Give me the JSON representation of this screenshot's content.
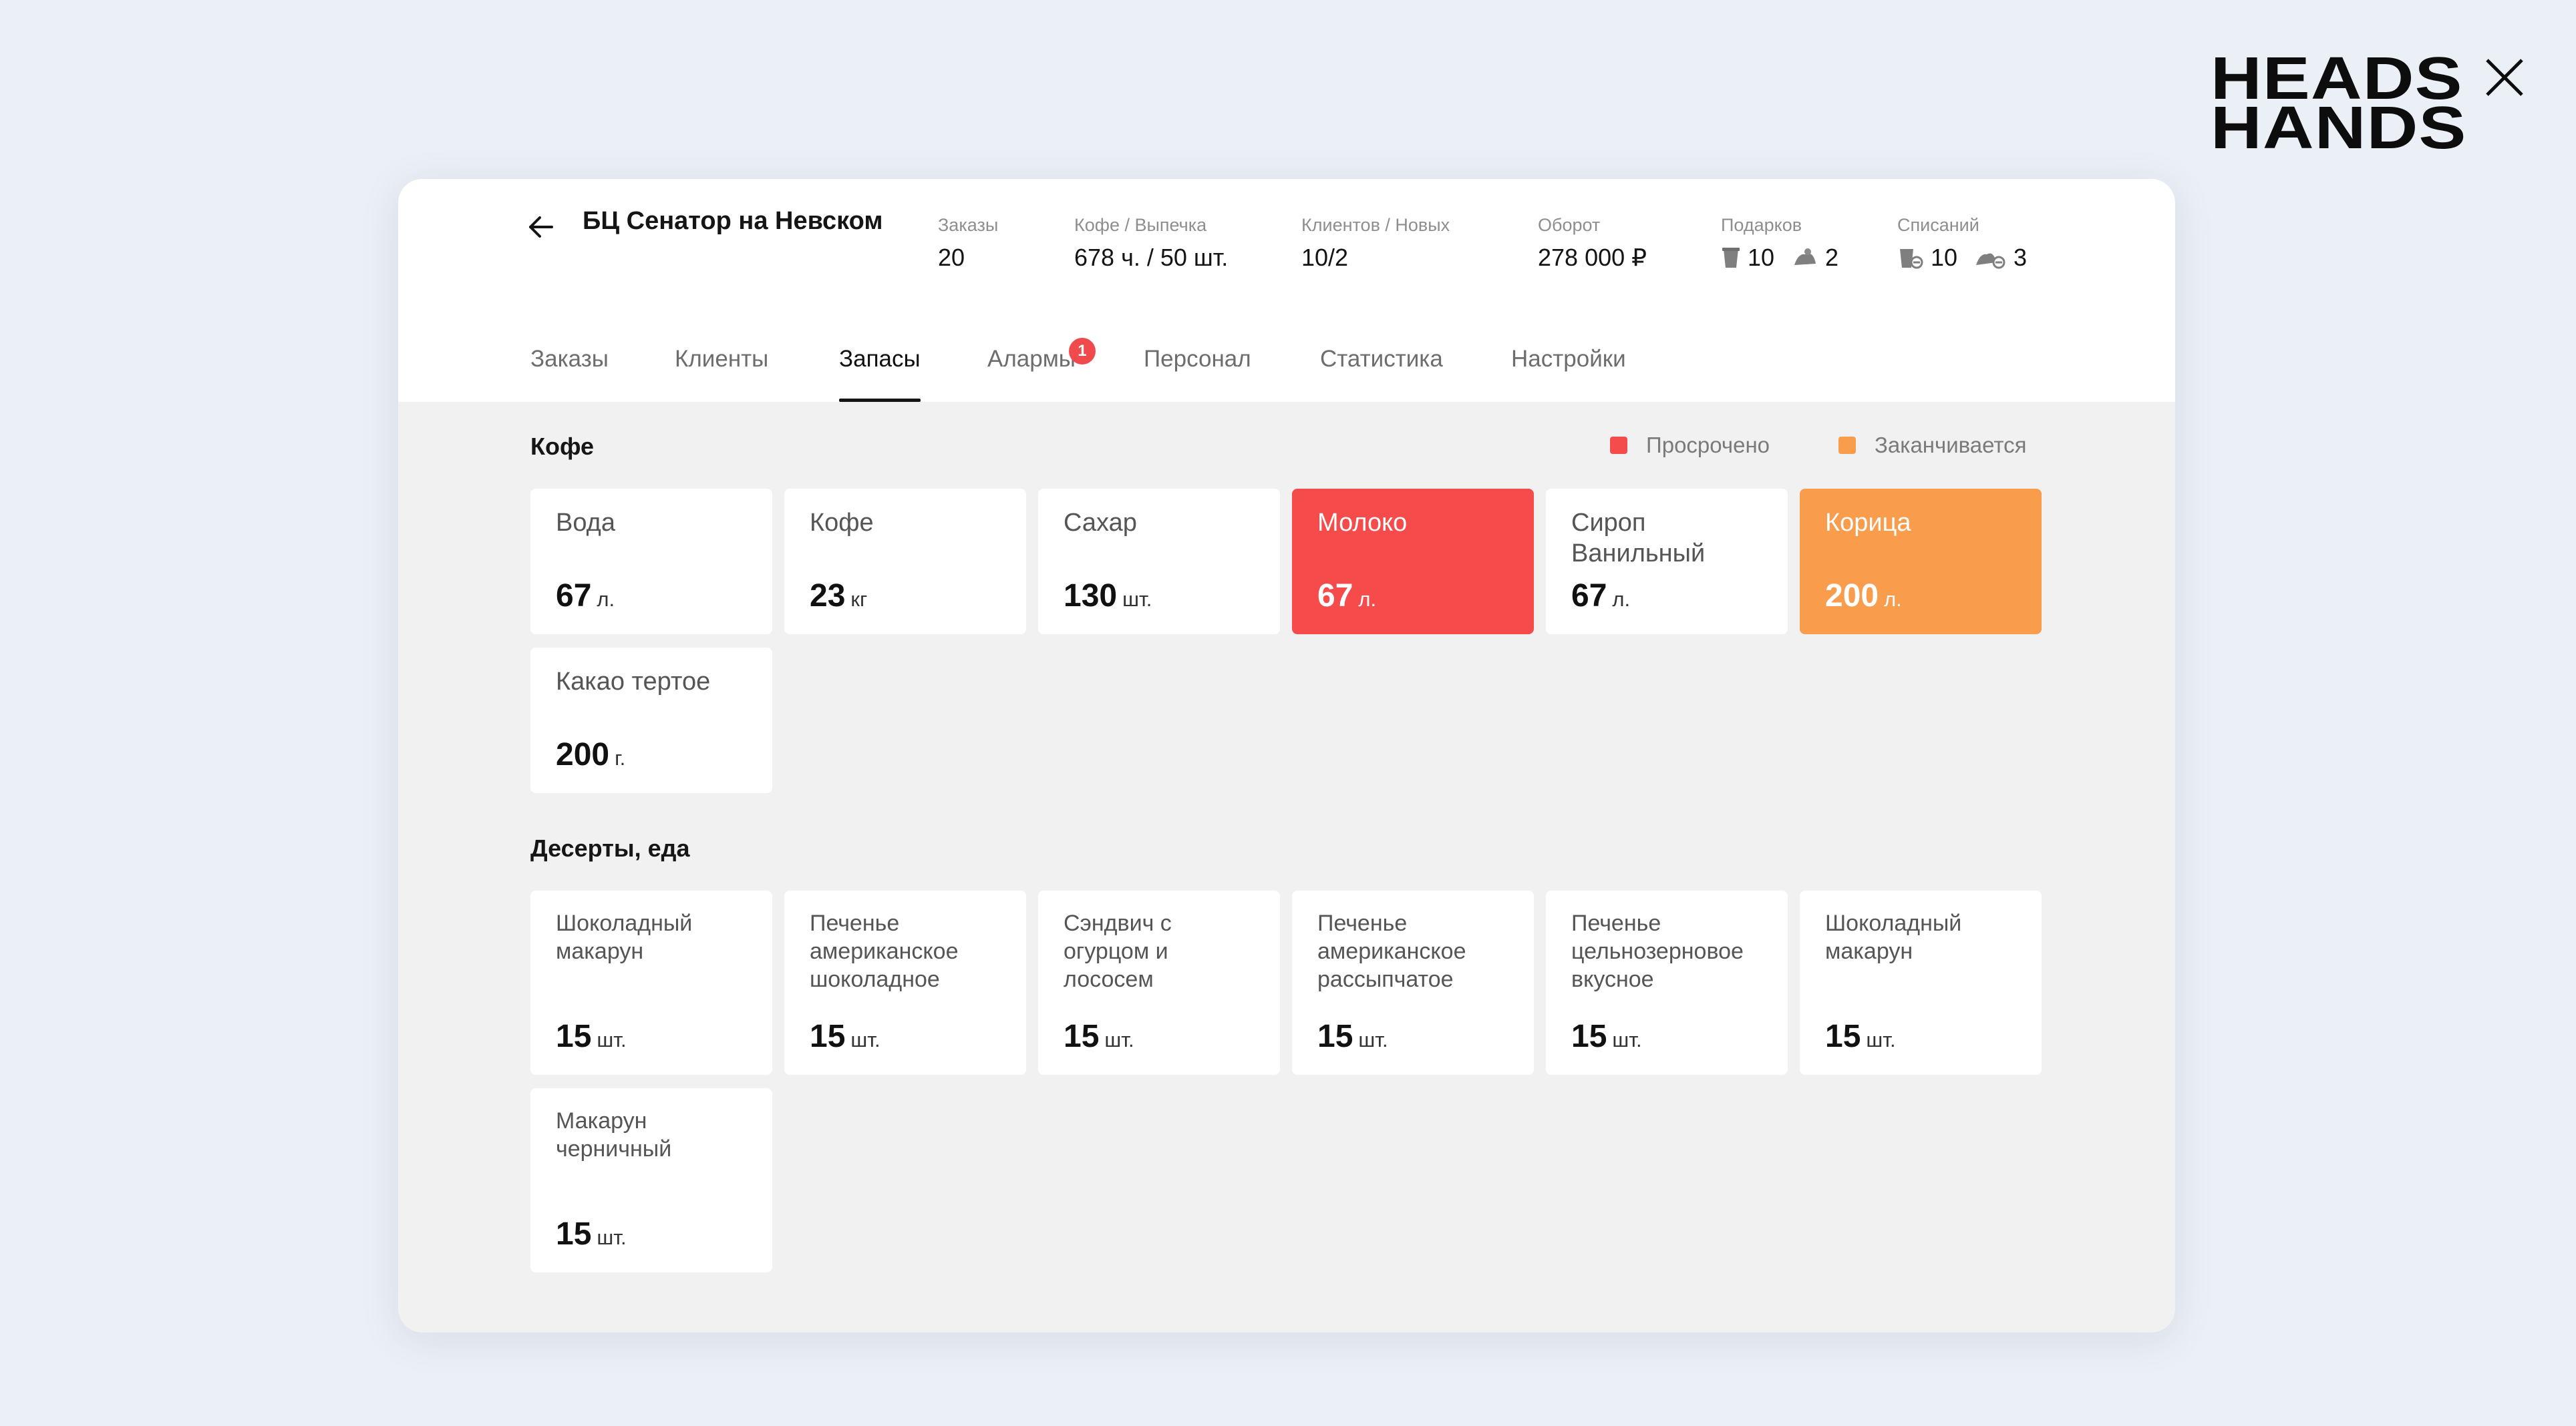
{
  "brand": {
    "line1": "HEADS",
    "line2": "HANDS",
    "mark_icon": "x-mark-icon"
  },
  "header": {
    "back_icon": "arrow-left-icon",
    "store_name": "БЦ Сенатор на Невском",
    "stats": [
      {
        "label": "Заказы",
        "value": "20"
      },
      {
        "label": "Кофе / Выпечка",
        "value": "678 ч. / 50 шт."
      },
      {
        "label": "Клиентов / Новых",
        "value": "10/2"
      },
      {
        "label": "Оборот",
        "value": "278 000 ₽"
      },
      {
        "label": "Подарков",
        "cup_value": "10",
        "food_value": "2",
        "cup_icon": "cup-icon",
        "food_icon": "pastry-icon"
      },
      {
        "label": "Списаний",
        "cup_value": "10",
        "food_value": "3",
        "cup_icon": "cup-writeoff-icon",
        "food_icon": "pastry-writeoff-icon"
      }
    ]
  },
  "tabs": [
    {
      "label": "Заказы"
    },
    {
      "label": "Клиенты"
    },
    {
      "label": "Запасы",
      "active": true
    },
    {
      "label": "Алармы",
      "badge": "1"
    },
    {
      "label": "Персонал"
    },
    {
      "label": "Статистика"
    },
    {
      "label": "Настройки"
    }
  ],
  "legend": {
    "expired": {
      "label": "Просрочено",
      "color": "#f54b4b"
    },
    "running_out": {
      "label": "Заканчивается",
      "color": "#f99c4c"
    }
  },
  "coffee_section": {
    "title": "Кофе",
    "items": [
      {
        "name": "Вода",
        "qty": "67",
        "unit": "л.",
        "status": "normal"
      },
      {
        "name": "Кофе",
        "qty": "23",
        "unit": "кг",
        "status": "normal"
      },
      {
        "name": "Сахар",
        "qty": "130",
        "unit": "шт.",
        "status": "normal"
      },
      {
        "name": "Молоко",
        "qty": "67",
        "unit": "л.",
        "status": "expired"
      },
      {
        "name": "Сироп Ванильный",
        "qty": "67",
        "unit": "л.",
        "status": "normal"
      },
      {
        "name": "Корица",
        "qty": "200",
        "unit": "л.",
        "status": "running_out"
      },
      {
        "name": "Какао тертое",
        "qty": "200",
        "unit": "г.",
        "status": "normal"
      }
    ]
  },
  "desserts_section": {
    "title": "Десерты, еда",
    "items": [
      {
        "name": "Шоколадный макарун",
        "qty": "15",
        "unit": "шт."
      },
      {
        "name": "Печенье американское шоколадное",
        "qty": "15",
        "unit": "шт."
      },
      {
        "name": "Сэндвич с огурцом и лососем",
        "qty": "15",
        "unit": "шт."
      },
      {
        "name": "Печенье американское рассыпчатое",
        "qty": "15",
        "unit": "шт."
      },
      {
        "name": "Печенье цельнозерновое вкусное",
        "qty": "15",
        "unit": "шт."
      },
      {
        "name": "Шоколадный макарун",
        "qty": "15",
        "unit": "шт."
      },
      {
        "name": "Макарун черничный",
        "qty": "15",
        "unit": "шт."
      }
    ]
  }
}
